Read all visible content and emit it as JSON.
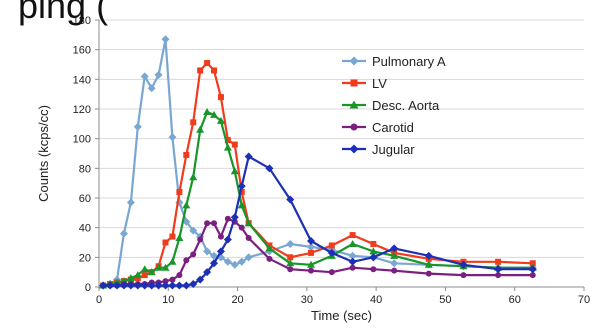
{
  "header": {
    "partial_title_text": "ping ("
  },
  "chart_data": {
    "type": "line",
    "title": "",
    "xlabel": "Time (sec)",
    "ylabel": "Counts (kcps/cc)",
    "xlim": [
      0,
      70
    ],
    "ylim": [
      0,
      180
    ],
    "xticks": [
      0,
      10,
      20,
      30,
      40,
      50,
      60,
      70
    ],
    "yticks": [
      0,
      20,
      40,
      60,
      80,
      100,
      120,
      140,
      160,
      180
    ],
    "grid": "horizontal",
    "legend_position": "right",
    "series": [
      {
        "name": "Pulmonary A",
        "color": "#7aa6d2",
        "marker": "diamond",
        "x": [
          0.6,
          1.6,
          2.6,
          3.6,
          4.6,
          5.6,
          6.6,
          7.6,
          8.6,
          9.6,
          10.6,
          11.6,
          12.6,
          13.6,
          14.6,
          15.6,
          16.6,
          17.6,
          18.6,
          19.6,
          20.6,
          21.6,
          24.6,
          27.6,
          30.6,
          33.6,
          36.6,
          39.6,
          42.6,
          47.6,
          52.6,
          57.6,
          62.6
        ],
        "y": [
          1,
          2,
          5,
          36,
          57,
          108,
          142,
          134,
          143,
          167,
          101,
          57,
          44,
          38,
          34,
          24,
          21,
          20,
          17,
          15,
          17,
          20,
          24,
          29,
          27,
          25,
          21,
          20,
          16,
          15,
          14,
          13,
          13
        ]
      },
      {
        "name": "LV",
        "color": "#f03c1c",
        "marker": "square",
        "x": [
          0.6,
          1.6,
          2.6,
          3.6,
          4.6,
          5.6,
          6.6,
          7.6,
          8.6,
          9.6,
          10.6,
          11.6,
          12.6,
          13.6,
          14.6,
          15.6,
          16.6,
          17.6,
          18.6,
          19.6,
          20.6,
          21.6,
          24.6,
          27.6,
          30.6,
          33.6,
          36.6,
          39.6,
          42.6,
          47.6,
          52.6,
          57.6,
          62.6
        ],
        "y": [
          1,
          2,
          3,
          4,
          5,
          6,
          8,
          10,
          14,
          30,
          34,
          64,
          89,
          111,
          146,
          151,
          146,
          128,
          99,
          96,
          64,
          43,
          28,
          20,
          23,
          28,
          35,
          29,
          23,
          19,
          17,
          17,
          16
        ]
      },
      {
        "name": "Desc. Aorta",
        "color": "#19962a",
        "marker": "triangle",
        "x": [
          0.6,
          1.6,
          2.6,
          3.6,
          4.6,
          5.6,
          6.6,
          7.6,
          8.6,
          9.6,
          10.6,
          11.6,
          12.6,
          13.6,
          14.6,
          15.6,
          16.6,
          17.6,
          18.6,
          19.6,
          20.6,
          21.6,
          24.6,
          27.6,
          30.6,
          33.6,
          36.6,
          39.6,
          42.6,
          47.6,
          52.6,
          57.6,
          62.6
        ],
        "y": [
          1,
          2,
          3,
          4,
          6,
          8,
          12,
          10,
          13,
          13,
          17,
          33,
          55,
          74,
          106,
          118,
          116,
          112,
          94,
          78,
          55,
          43,
          26,
          16,
          15,
          21,
          29,
          24,
          21,
          15,
          14,
          13,
          13
        ]
      },
      {
        "name": "Carotid",
        "color": "#7b1f80",
        "marker": "circle",
        "x": [
          0.6,
          1.6,
          2.6,
          3.6,
          4.6,
          5.6,
          6.6,
          7.6,
          8.6,
          9.6,
          10.6,
          11.6,
          12.6,
          13.6,
          14.6,
          15.6,
          16.6,
          17.6,
          18.6,
          19.6,
          20.6,
          21.6,
          24.6,
          27.6,
          30.6,
          33.6,
          36.6,
          39.6,
          42.6,
          47.6,
          52.6,
          57.6,
          62.6
        ],
        "y": [
          1,
          1,
          1,
          2,
          2,
          2,
          2,
          3,
          3,
          4,
          5,
          8,
          18,
          22,
          32,
          43,
          43,
          34,
          46,
          44,
          40,
          33,
          19,
          12,
          11,
          10,
          13,
          12,
          11,
          9,
          8,
          8,
          8
        ]
      },
      {
        "name": "Jugular",
        "color": "#1c2fb5",
        "marker": "diamond",
        "x": [
          0.6,
          1.6,
          2.6,
          3.6,
          4.6,
          5.6,
          6.6,
          7.6,
          8.6,
          9.6,
          10.6,
          11.6,
          12.6,
          13.6,
          14.6,
          15.6,
          16.6,
          17.6,
          18.6,
          19.6,
          20.6,
          21.6,
          24.6,
          27.6,
          30.6,
          33.6,
          36.6,
          39.6,
          42.6,
          47.6,
          52.6,
          57.6,
          62.6
        ],
        "y": [
          1,
          1,
          1,
          1,
          1,
          1,
          1,
          1,
          1,
          1,
          1,
          1,
          1,
          2,
          5,
          10,
          16,
          24,
          32,
          47,
          68,
          88,
          80,
          59,
          31,
          23,
          17,
          20,
          26,
          21,
          15,
          12,
          12
        ]
      }
    ]
  }
}
